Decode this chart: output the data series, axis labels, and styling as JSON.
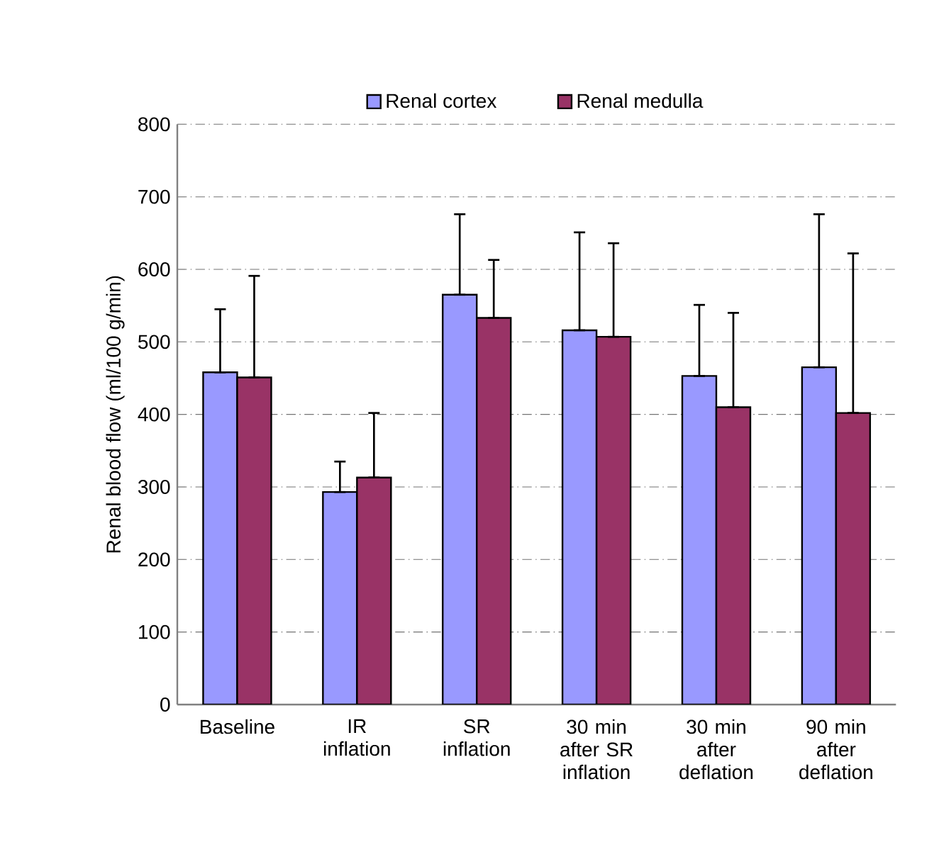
{
  "chart_data": {
    "type": "bar",
    "ylabel": "Renal blood flow (ml/100 g/min)",
    "categories": [
      "Baseline",
      "IR inflation",
      "SR inflation",
      "30 min after SR inflation",
      "30 min after deflation",
      "90 min after deflation"
    ],
    "series": [
      {
        "name": "Renal cortex",
        "color": "#9999ff",
        "values": [
          458,
          293,
          565,
          516,
          453,
          465
        ],
        "errors": [
          [
            458,
            545
          ],
          [
            293,
            335
          ],
          [
            565,
            676
          ],
          [
            516,
            651
          ],
          [
            453,
            551
          ],
          [
            465,
            676
          ]
        ]
      },
      {
        "name": "Renal medulla",
        "color": "#993366",
        "values": [
          451,
          313,
          533,
          507,
          410,
          402
        ],
        "errors": [
          [
            451,
            591
          ],
          [
            313,
            402
          ],
          [
            533,
            613
          ],
          [
            507,
            636
          ],
          [
            410,
            540
          ],
          [
            402,
            622
          ]
        ]
      }
    ],
    "ylim": [
      0,
      800
    ],
    "yticks": [
      0,
      100,
      200,
      300,
      400,
      500,
      600,
      700,
      800
    ],
    "grid": "y",
    "legend": "top"
  }
}
